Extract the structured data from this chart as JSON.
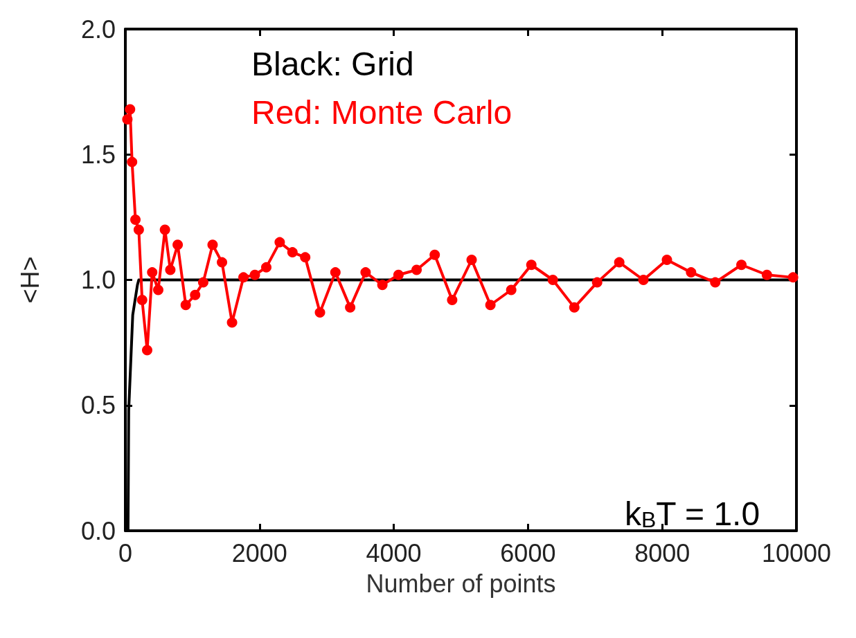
{
  "chart_data": {
    "type": "line",
    "xlabel": "Number of points",
    "ylabel": "<H>",
    "annotations": [
      "Black: Grid",
      "Red: Monte Carlo",
      "k$_{B}$T = 1.0"
    ],
    "series": [
      {
        "color": "#000000",
        "marker": "none",
        "x": [
          40,
          50,
          110,
          180,
          200,
          10000
        ],
        "values": [
          0.0,
          0.48,
          0.86,
          0.98,
          1.0,
          1.0
        ]
      },
      {
        "color": "#ff0000",
        "marker": "circle",
        "x": [
          30,
          70,
          100,
          150,
          200,
          250,
          325,
          400,
          490,
          590,
          670,
          780,
          900,
          1040,
          1160,
          1300,
          1440,
          1590,
          1760,
          1930,
          2100,
          2300,
          2490,
          2680,
          2900,
          3130,
          3350,
          3580,
          3830,
          4070,
          4340,
          4610,
          4870,
          5160,
          5440,
          5750,
          6050,
          6370,
          6690,
          7030,
          7360,
          7720,
          8070,
          8430,
          8790,
          9180,
          9560,
          9950
        ],
        "values": [
          1.64,
          1.68,
          1.47,
          1.24,
          1.2,
          0.92,
          0.72,
          1.03,
          0.96,
          1.2,
          1.04,
          1.14,
          0.9,
          0.94,
          0.99,
          1.14,
          1.07,
          0.83,
          1.01,
          1.02,
          1.05,
          1.15,
          1.11,
          1.09,
          0.87,
          1.03,
          0.89,
          1.03,
          0.98,
          1.02,
          1.04,
          1.1,
          0.92,
          1.08,
          0.9,
          0.96,
          1.06,
          1.0,
          0.89,
          0.99,
          1.07,
          1.0,
          1.08,
          1.03,
          0.99,
          1.06,
          1.02,
          1.01
        ]
      }
    ],
    "xlim": [
      0,
      10000
    ],
    "xticks": [
      0,
      2000,
      4000,
      6000,
      8000,
      10000
    ],
    "ylim": [
      0,
      2
    ],
    "yticks": [
      {
        "value": 0,
        "label": "0.0"
      },
      {
        "value": 0.5,
        "label": "0.5"
      },
      {
        "value": 1,
        "label": "1.0"
      },
      {
        "value": 1.5,
        "label": "1.5"
      },
      {
        "value": 2,
        "label": "2.0"
      }
    ],
    "grid": false,
    "line_style": "solid"
  }
}
